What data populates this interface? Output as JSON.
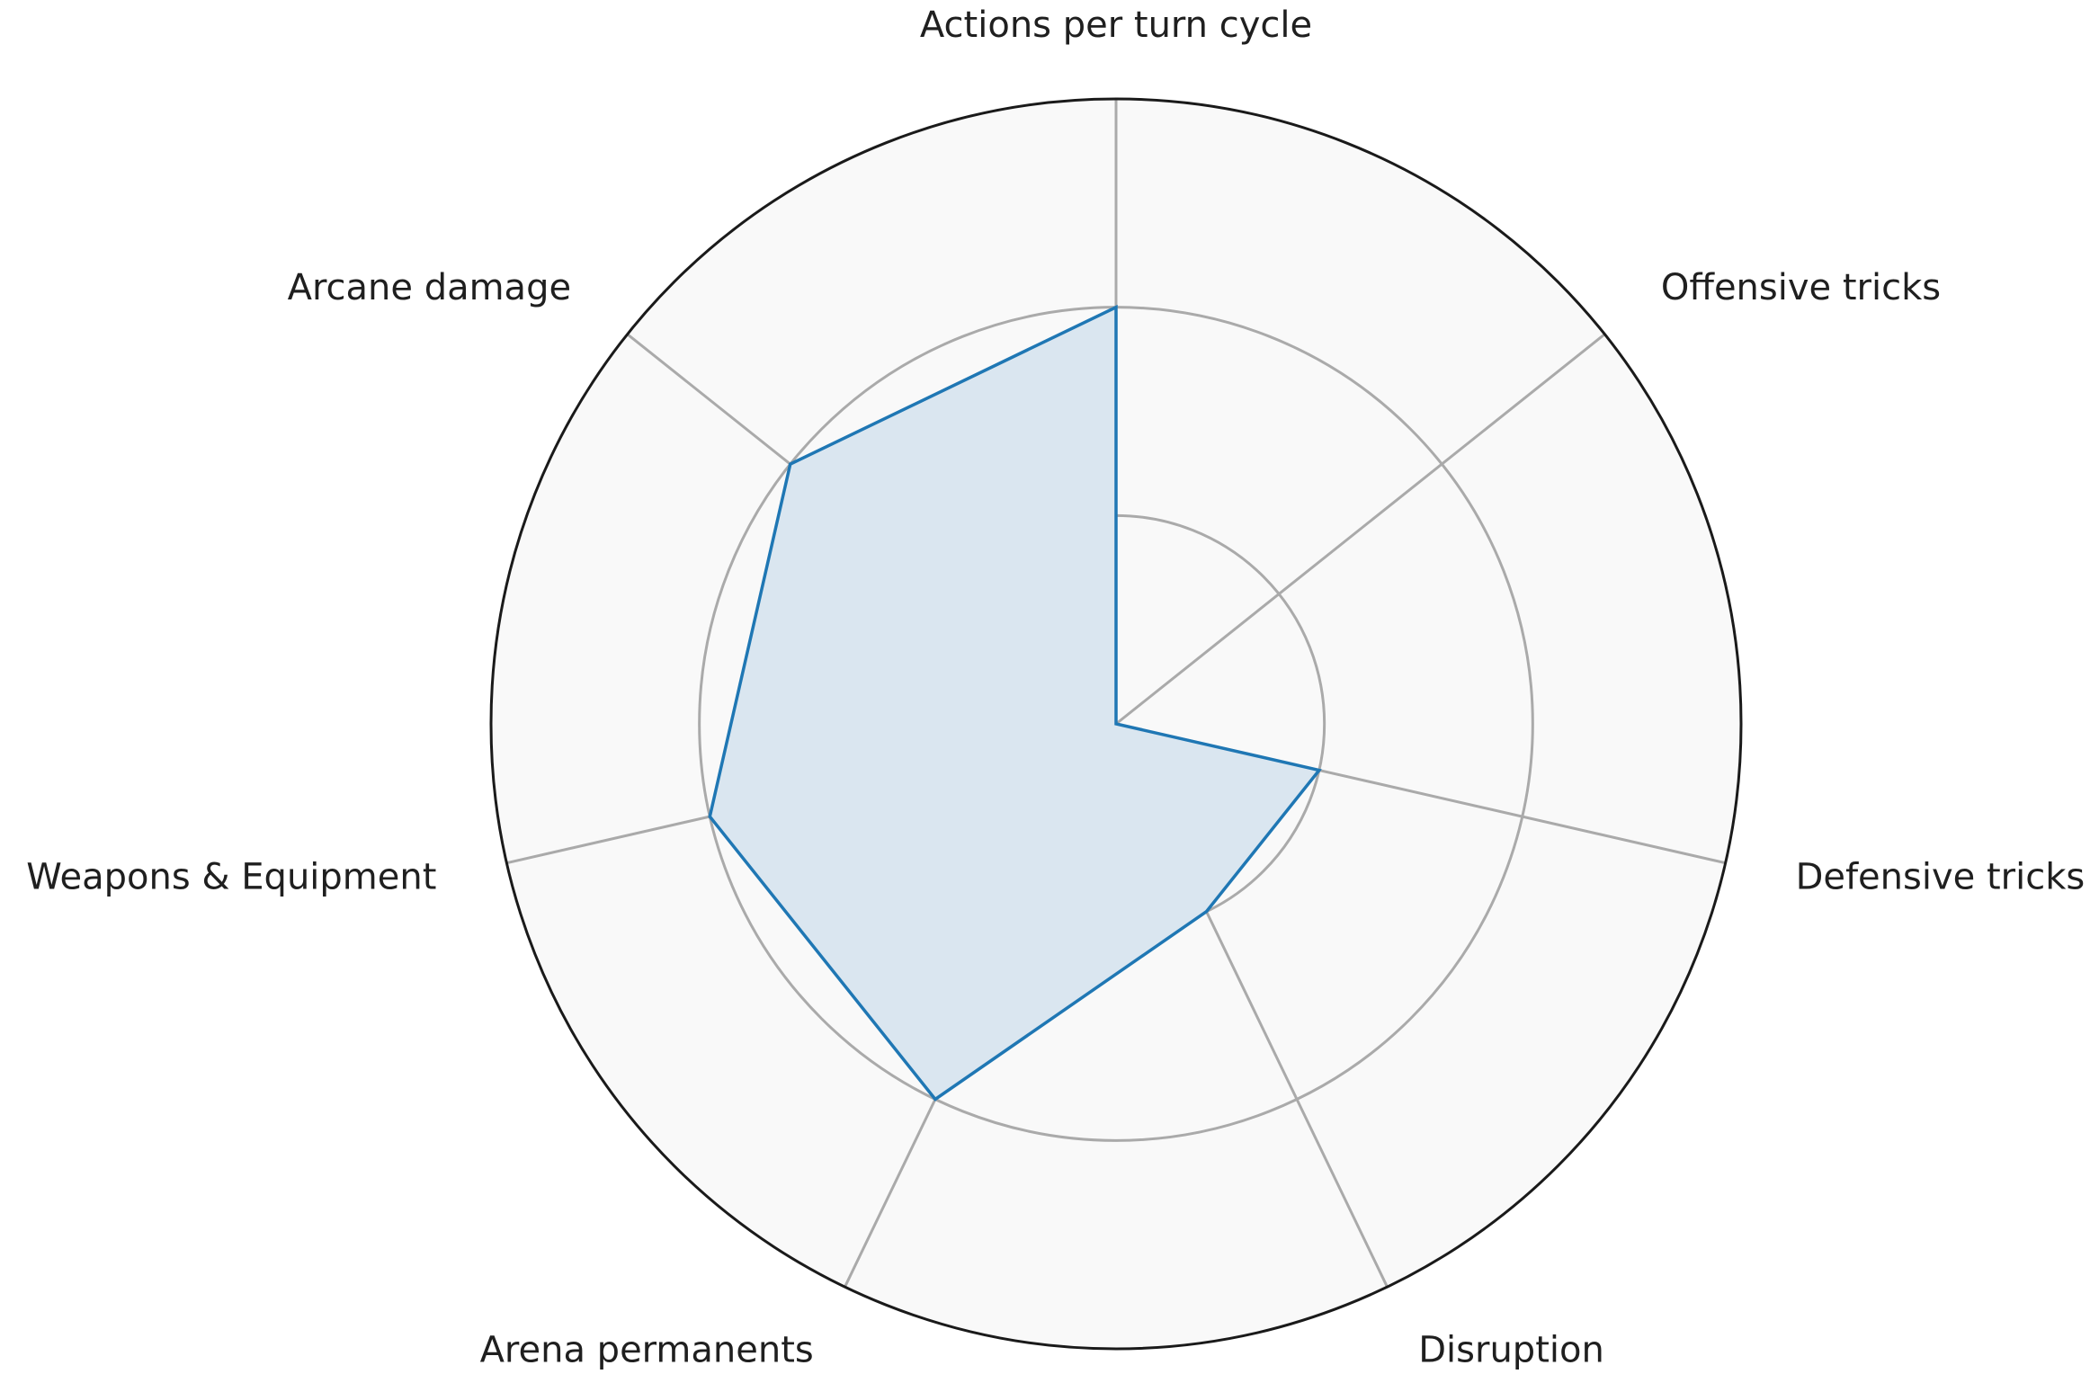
{
  "chart_data": {
    "type": "radar",
    "axes": [
      "Actions per turn cycle",
      "Offensive tricks",
      "Defensive tricks",
      "Disruption",
      "Arena permanents",
      "Weapons & Equipment",
      "Arcane damage"
    ],
    "series": [
      {
        "values": [
          2,
          0,
          1,
          1,
          2,
          2,
          2
        ]
      }
    ],
    "rlim": [
      0,
      3
    ],
    "rgrid": [
      1,
      2
    ],
    "grid": true,
    "legend": "none",
    "colors": {
      "line": "#1f77b4",
      "fill": "#dae6f0",
      "background": "#f9f9f9",
      "grid": "#aaaaaa",
      "outer_ring": "#1a1a1a"
    }
  }
}
